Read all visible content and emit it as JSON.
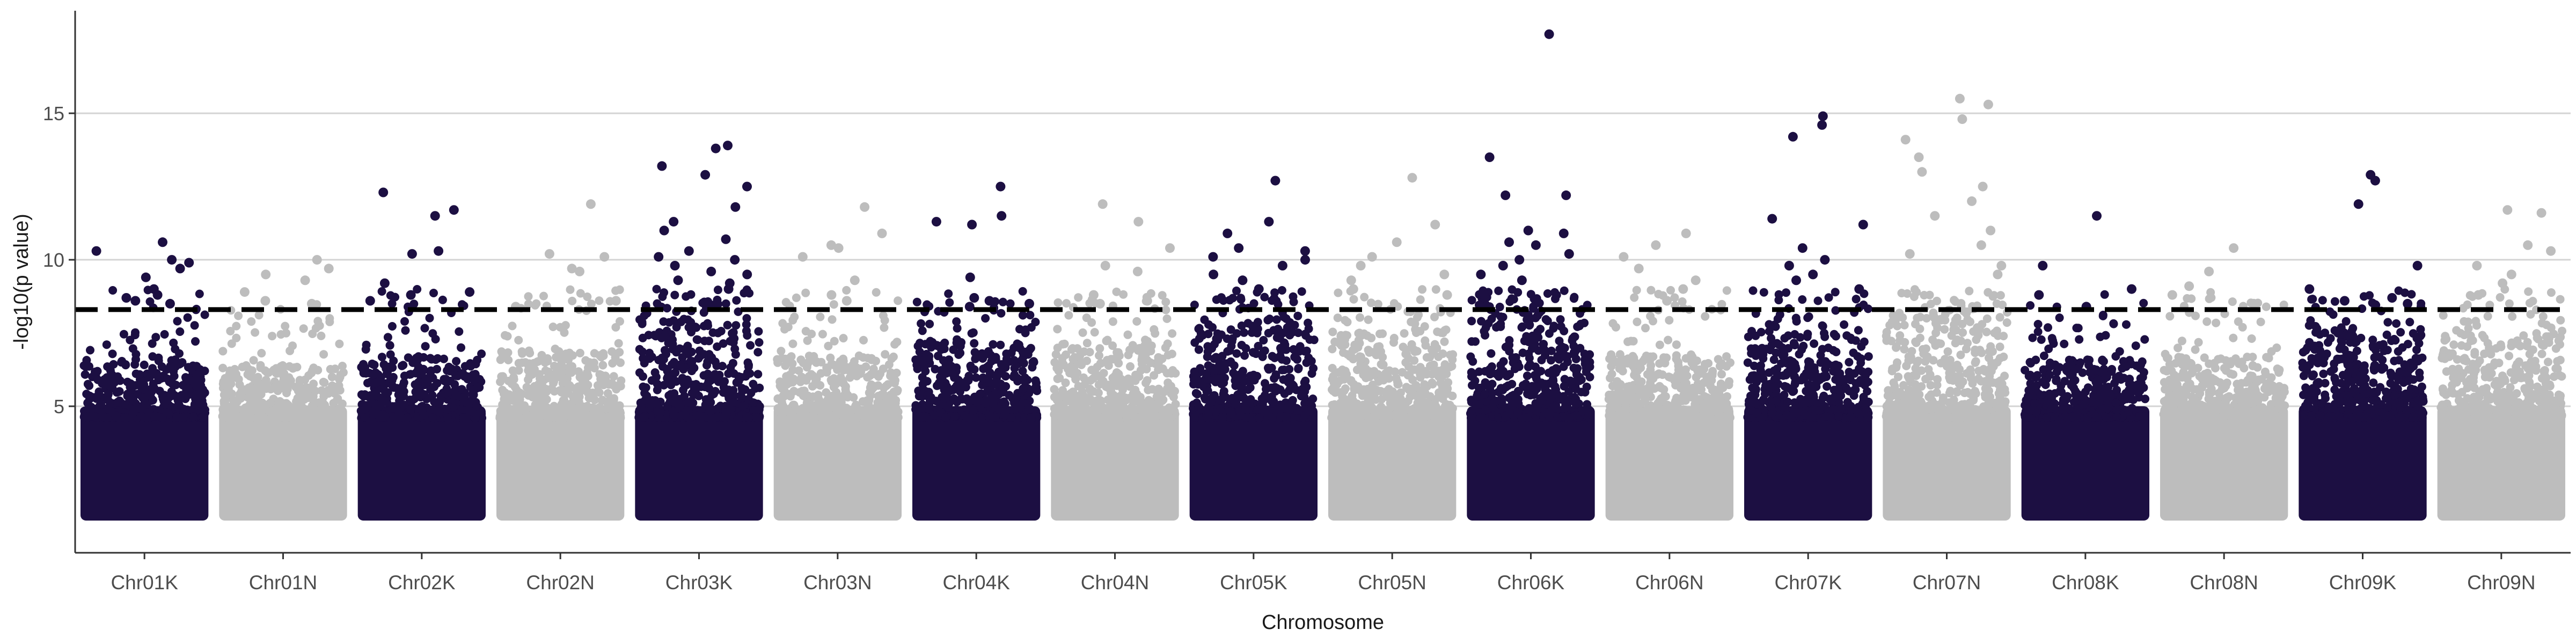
{
  "chart_data": {
    "type": "scatter",
    "subtype": "manhattan",
    "title": "",
    "xlabel": "Chromosome",
    "ylabel": "-log10(p value)",
    "ylim": [
      0,
      18.5
    ],
    "yticks": [
      5,
      10,
      15
    ],
    "grid": "horizontal major",
    "threshold": 8.3,
    "colors": {
      "dark": "#1c0f42",
      "light": "#bdbdbd",
      "threshold": "#000000",
      "grid": "#d4d4d4"
    },
    "chromosomes": [
      {
        "name": "Chr01K",
        "color": "dark",
        "base_max": 6.6,
        "top_hits": [
          9.7,
          10.6,
          10.3,
          10.0,
          9.9,
          9.4,
          9.0,
          8.8,
          8.7,
          8.6,
          8.5
        ]
      },
      {
        "name": "Chr01N",
        "color": "light",
        "base_max": 6.4,
        "top_hits": [
          10.0,
          9.7,
          9.5,
          9.3,
          8.9,
          8.6,
          8.5
        ]
      },
      {
        "name": "Chr02K",
        "color": "dark",
        "base_max": 6.7,
        "top_hits": [
          11.7,
          12.3,
          11.5,
          10.3,
          10.2,
          9.2,
          8.9,
          8.8,
          8.6
        ]
      },
      {
        "name": "Chr02N",
        "color": "light",
        "base_max": 6.9,
        "top_hits": [
          11.9,
          10.2,
          10.1,
          9.7,
          9.6,
          8.6,
          8.4
        ]
      },
      {
        "name": "Chr03K",
        "color": "dark",
        "base_max": 8.0,
        "top_hits": [
          13.9,
          13.8,
          13.2,
          12.9,
          12.5,
          11.8,
          11.3,
          11.0,
          10.7,
          10.3,
          10.1,
          10.0,
          9.8,
          9.6,
          9.5,
          9.3,
          9.2,
          9.0
        ]
      },
      {
        "name": "Chr03N",
        "color": "light",
        "base_max": 6.8,
        "top_hits": [
          11.8,
          10.9,
          10.5,
          10.4,
          10.1,
          9.3,
          8.8,
          8.6
        ]
      },
      {
        "name": "Chr04K",
        "color": "dark",
        "base_max": 7.3,
        "top_hits": [
          11.5,
          11.3,
          12.5,
          11.2,
          9.4,
          8.7,
          8.6,
          8.5,
          8.4
        ]
      },
      {
        "name": "Chr04N",
        "color": "light",
        "base_max": 7.3,
        "top_hits": [
          11.3,
          11.9,
          10.4,
          9.8,
          9.6,
          8.8,
          8.6,
          8.5
        ]
      },
      {
        "name": "Chr05K",
        "color": "dark",
        "base_max": 8.0,
        "top_hits": [
          12.7,
          11.3,
          10.9,
          10.4,
          10.3,
          10.1,
          10.0,
          9.8,
          9.5,
          9.3,
          9.0
        ]
      },
      {
        "name": "Chr05N",
        "color": "light",
        "base_max": 7.6,
        "top_hits": [
          12.8,
          11.2,
          10.6,
          10.1,
          9.8,
          9.5,
          9.3,
          9.0,
          8.8
        ]
      },
      {
        "name": "Chr06K",
        "color": "dark",
        "base_max": 8.4,
        "top_hits": [
          17.7,
          13.5,
          12.2,
          12.2,
          11.0,
          10.9,
          10.6,
          10.5,
          10.2,
          10.0,
          9.8,
          9.5,
          9.3
        ]
      },
      {
        "name": "Chr06N",
        "color": "light",
        "base_max": 6.8,
        "top_hits": [
          10.9,
          10.5,
          10.1,
          9.7,
          9.3,
          9.0,
          8.6
        ]
      },
      {
        "name": "Chr07K",
        "color": "dark",
        "base_max": 7.6,
        "top_hits": [
          14.9,
          14.6,
          14.2,
          11.4,
          11.2,
          10.4,
          10.0,
          9.8,
          9.5,
          9.3,
          9.0
        ]
      },
      {
        "name": "Chr07N",
        "color": "light",
        "base_max": 8.2,
        "top_hits": [
          15.5,
          15.3,
          14.8,
          14.1,
          13.5,
          13.0,
          12.5,
          12.0,
          11.5,
          11.0,
          10.5,
          10.2,
          9.8,
          9.5
        ]
      },
      {
        "name": "Chr08K",
        "color": "dark",
        "base_max": 6.6,
        "top_hits": [
          11.5,
          9.8,
          9.0,
          8.8,
          8.4
        ]
      },
      {
        "name": "Chr08N",
        "color": "light",
        "base_max": 6.7,
        "top_hits": [
          10.4,
          9.6,
          9.1,
          8.8,
          8.5
        ]
      },
      {
        "name": "Chr09K",
        "color": "dark",
        "base_max": 7.6,
        "top_hits": [
          12.9,
          12.7,
          11.9,
          9.8,
          9.0,
          8.7,
          8.6,
          8.5
        ]
      },
      {
        "name": "Chr09N",
        "color": "light",
        "base_max": 7.6,
        "top_hits": [
          11.7,
          11.6,
          10.5,
          10.3,
          9.8,
          9.5,
          9.2,
          8.8
        ]
      }
    ]
  }
}
